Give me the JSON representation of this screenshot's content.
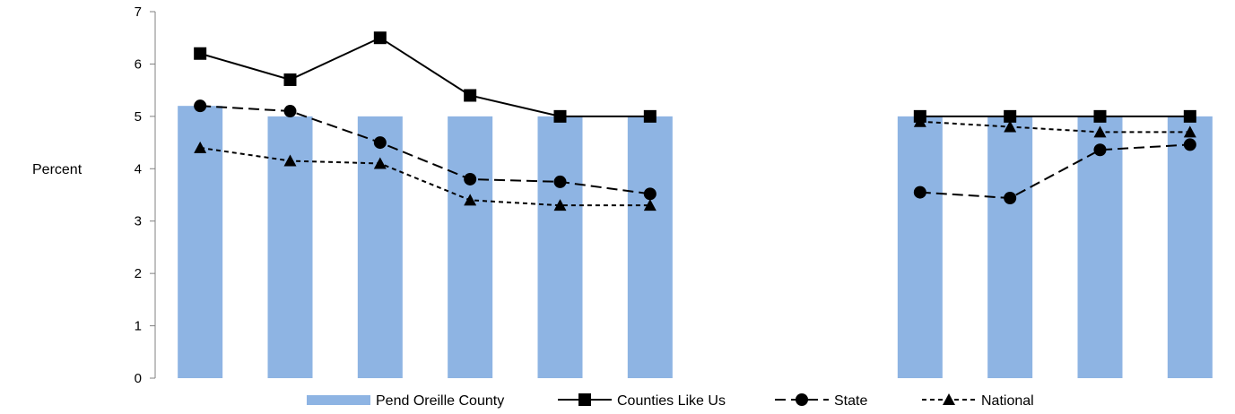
{
  "chart_data": {
    "type": "bar",
    "title": "",
    "xlabel": "",
    "ylabel": "Percent",
    "ylim": [
      0,
      7
    ],
    "yticks": [
      0,
      1,
      2,
      3,
      4,
      5,
      6,
      7
    ],
    "categories": [
      "",
      "",
      "",
      "",
      "",
      "",
      "",
      "",
      "",
      "",
      "",
      ""
    ],
    "series": [
      {
        "name": "Pend Oreille County",
        "kind": "bar",
        "color": "#8EB4E3",
        "values": [
          5.2,
          5.0,
          5.0,
          5.0,
          5.0,
          5.0,
          null,
          null,
          5.0,
          5.0,
          5.0,
          5.0
        ]
      },
      {
        "name": "Counties Like Us",
        "kind": "line",
        "dash": "solid",
        "marker": "square",
        "color": "#000000",
        "values": [
          6.2,
          5.7,
          6.5,
          5.4,
          5.0,
          5.0,
          null,
          null,
          5.0,
          5.0,
          5.0,
          5.0
        ]
      },
      {
        "name": "State",
        "kind": "line",
        "dash": "long-dash",
        "marker": "circle",
        "color": "#000000",
        "values": [
          5.2,
          5.1,
          4.5,
          3.8,
          3.75,
          3.52,
          null,
          null,
          3.55,
          3.44,
          4.36,
          4.46
        ]
      },
      {
        "name": "National",
        "kind": "line",
        "dash": "short-dash",
        "marker": "triangle",
        "color": "#000000",
        "values": [
          4.4,
          4.15,
          4.1,
          3.4,
          3.3,
          3.3,
          null,
          null,
          4.9,
          4.8,
          4.7,
          4.7
        ]
      }
    ],
    "legend_position": "bottom",
    "grid": false
  }
}
